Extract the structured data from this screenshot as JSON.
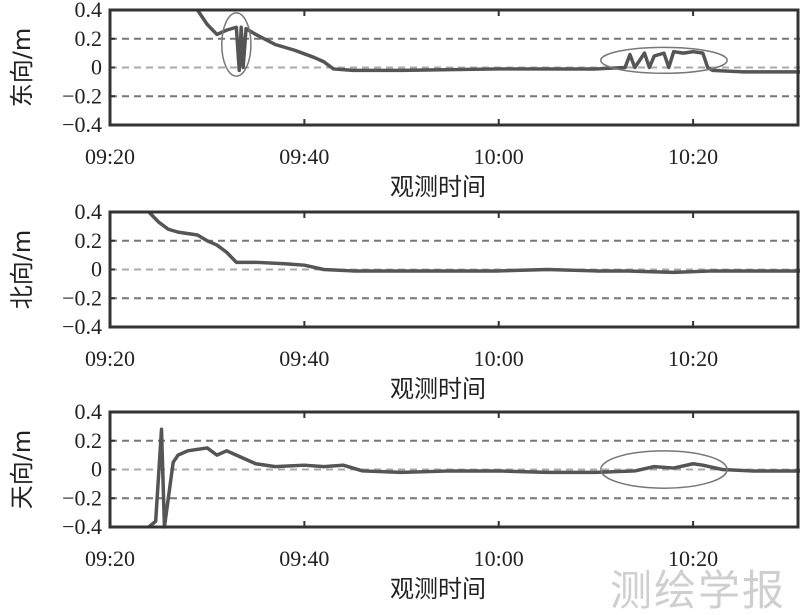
{
  "chart_data": [
    {
      "type": "line",
      "ylabel": "东向/m",
      "xlabel": "观测时间",
      "xticks": [
        "09:20",
        "09:40",
        "10:00",
        "10:20"
      ],
      "xlim": [
        "09:20",
        "10:31"
      ],
      "yticks": [
        "0.4",
        "0.2",
        "0",
        "−0.2",
        "−0.4"
      ],
      "ylim": [
        -0.4,
        0.4
      ],
      "grid": "dashed at -0.2, 0, 0.2",
      "series": [
        {
          "x": [
            "09:29",
            "09:30",
            "09:31",
            "09:32",
            "09:33",
            "09:33.3",
            "09:33.5",
            "09:33.7",
            "09:34",
            "09:35",
            "09:37",
            "09:39",
            "09:41",
            "09:42",
            "09:43",
            "09:45",
            "09:50",
            "10:00",
            "10:10",
            "10:13",
            "10:13.5",
            "10:14",
            "10:15",
            "10:15.5",
            "10:16",
            "10:17",
            "10:17.5",
            "10:18",
            "10:19",
            "10:20",
            "10:21",
            "10:21.5",
            "10:22",
            "10:25",
            "10:31"
          ],
          "y": [
            0.4,
            0.3,
            0.23,
            0.26,
            0.28,
            -0.02,
            0.28,
            0.0,
            0.27,
            0.23,
            0.16,
            0.12,
            0.07,
            0.04,
            -0.01,
            -0.02,
            -0.02,
            -0.01,
            -0.01,
            0.0,
            0.09,
            0.0,
            0.1,
            0.0,
            0.08,
            0.1,
            0.0,
            0.11,
            0.1,
            0.11,
            0.1,
            0.0,
            -0.02,
            -0.03,
            -0.03
          ]
        }
      ],
      "annotations": [
        {
          "shape": "ellipse",
          "center": [
            "09:33",
            0.16
          ],
          "half_width_min": 1.5,
          "half_height": 0.22
        },
        {
          "shape": "ellipse",
          "center": [
            "10:17",
            0.05
          ],
          "half_width_min": 6.5,
          "half_height": 0.09
        }
      ]
    },
    {
      "type": "line",
      "ylabel": "北向/m",
      "xlabel": "观测时间",
      "xticks": [
        "09:20",
        "09:40",
        "10:00",
        "10:20"
      ],
      "xlim": [
        "09:20",
        "10:31"
      ],
      "yticks": [
        "0.4",
        "0.2",
        "0",
        "−0.2",
        "−0.4"
      ],
      "ylim": [
        -0.4,
        0.4
      ],
      "grid": "dashed at -0.2, 0, 0.2",
      "series": [
        {
          "x": [
            "09:24",
            "09:25",
            "09:26",
            "09:27",
            "09:29",
            "09:30",
            "09:31",
            "09:32",
            "09:33",
            "09:35",
            "09:38",
            "09:40",
            "09:42",
            "09:45",
            "09:50",
            "10:00",
            "10:05",
            "10:10",
            "10:13",
            "10:18",
            "10:22",
            "10:26",
            "10:31"
          ],
          "y": [
            0.4,
            0.33,
            0.28,
            0.26,
            0.24,
            0.2,
            0.17,
            0.12,
            0.05,
            0.05,
            0.04,
            0.03,
            0.0,
            -0.01,
            -0.01,
            -0.01,
            0.0,
            -0.01,
            -0.01,
            -0.02,
            -0.01,
            -0.01,
            -0.01
          ]
        }
      ],
      "annotations": []
    },
    {
      "type": "line",
      "ylabel": "天向/m",
      "xlabel": "观测时间",
      "xticks": [
        "09:20",
        "09:40",
        "10:00",
        "10:20"
      ],
      "xlim": [
        "09:20",
        "10:31"
      ],
      "yticks": [
        "0.4",
        "0.2",
        "0",
        "−0.2",
        "−0.4"
      ],
      "ylim": [
        -0.4,
        0.4
      ],
      "grid": "dashed at -0.2, 0, 0.2",
      "series": [
        {
          "x": [
            "09:24",
            "09:24.7",
            "09:25.3",
            "09:25.6",
            "09:26",
            "09:26.5",
            "09:27",
            "09:28",
            "09:30",
            "09:31",
            "09:32",
            "09:33",
            "09:35",
            "09:37",
            "09:40",
            "09:42",
            "09:44",
            "09:46",
            "09:50",
            "09:55",
            "10:00",
            "10:05",
            "10:10",
            "10:14",
            "10:16",
            "10:18",
            "10:20",
            "10:21",
            "10:23",
            "10:26",
            "10:31"
          ],
          "y": [
            -0.4,
            -0.36,
            0.28,
            -0.4,
            -0.2,
            0.05,
            0.1,
            0.13,
            0.15,
            0.1,
            0.13,
            0.1,
            0.04,
            0.02,
            0.03,
            0.02,
            0.03,
            -0.01,
            -0.02,
            -0.01,
            -0.01,
            -0.02,
            -0.02,
            -0.01,
            0.02,
            0.01,
            0.04,
            0.03,
            0.0,
            -0.01,
            -0.01
          ]
        }
      ],
      "annotations": [
        {
          "shape": "ellipse",
          "center": [
            "10:17",
            0.0
          ],
          "half_width_min": 6.5,
          "half_height": 0.13
        }
      ]
    }
  ],
  "watermark": "测绘学报"
}
